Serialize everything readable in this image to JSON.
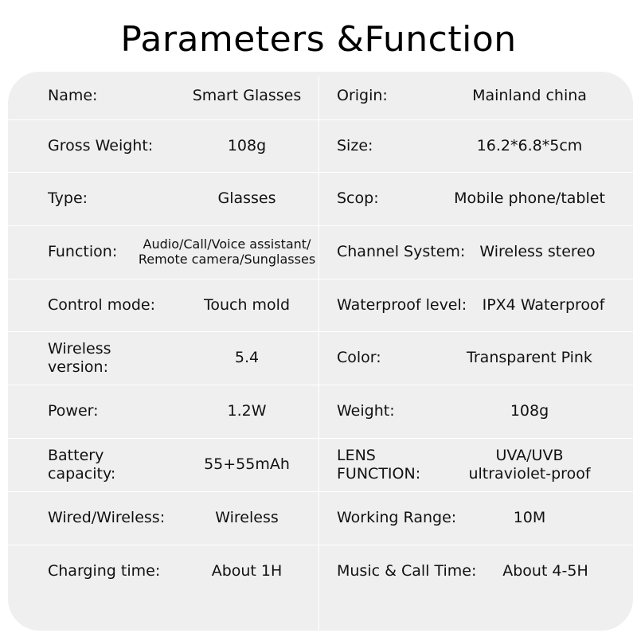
{
  "title": "Parameters &Function",
  "rows": [
    {
      "left": {
        "label": "Name:",
        "value": "Smart Glasses"
      },
      "right": {
        "label": "Origin:",
        "value": "Mainland china"
      }
    },
    {
      "left": {
        "label": "Gross Weight:",
        "value": "108g"
      },
      "right": {
        "label": "Size:",
        "value": "16.2*6.8*5cm"
      }
    },
    {
      "left": {
        "label": "Type:",
        "value": "Glasses"
      },
      "right": {
        "label": "Scop:",
        "value": "Mobile phone/tablet"
      }
    },
    {
      "left": {
        "label": "Function:",
        "value_lines": [
          "Audio/Call/Voice assistant/",
          "Remote camera/Sunglasses"
        ]
      },
      "right": {
        "label": "Channel System:",
        "value": "Wireless stereo"
      }
    },
    {
      "left": {
        "label": "Control mode:",
        "value": "Touch mold"
      },
      "right": {
        "label": "Waterproof level:",
        "value": "IPX4 Waterproof"
      }
    },
    {
      "left": {
        "label": "Wireless version:",
        "value": "5.4"
      },
      "right": {
        "label": "Color:",
        "value": "Transparent Pink"
      }
    },
    {
      "left": {
        "label": "Power:",
        "value": "1.2W"
      },
      "right": {
        "label": "Weight:",
        "value": "108g"
      }
    },
    {
      "left": {
        "label": "Battery capacity:",
        "value": "55+55mAh"
      },
      "right": {
        "label_lines": [
          "LENS",
          "FUNCTION:"
        ],
        "value_lines": [
          "UVA/UVB",
          "ultraviolet-proof"
        ]
      }
    },
    {
      "left": {
        "label": "Wired/Wireless:",
        "value": "Wireless"
      },
      "right": {
        "label": "Working Range:",
        "value": "10M"
      }
    },
    {
      "left": {
        "label": "Charging time:",
        "value": "About 1H"
      },
      "right": {
        "label": "Music & Call Time:",
        "value": "About 4-5H"
      }
    }
  ]
}
